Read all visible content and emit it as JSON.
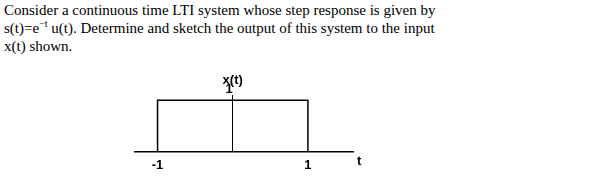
{
  "problem": {
    "lines": [
      [
        {
          "text": "Consider a continuous time LTI system whose step response is given by"
        }
      ],
      [
        {
          "text": "s(t)=e"
        },
        {
          "sup": "−t"
        },
        {
          "text": " u(t). Determine and sketch the output of this system to the input"
        }
      ],
      [
        {
          "text": "x(t) shown."
        }
      ]
    ]
  },
  "chart_data": {
    "type": "line",
    "ylabel": "x(t)",
    "xlabel": "t",
    "x": [
      -1,
      -1,
      1,
      1
    ],
    "values": [
      0,
      1,
      1,
      0
    ],
    "color": "#000000",
    "xlim": [
      -1.3,
      1.6
    ],
    "xticks": [
      -1,
      1
    ],
    "ylim": [
      0,
      1.1
    ],
    "yticks": [
      1
    ],
    "grid": false
  }
}
